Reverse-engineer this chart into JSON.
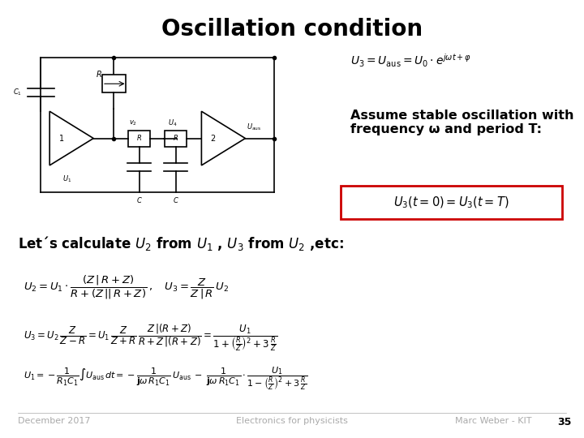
{
  "title": "Oscillation condition",
  "title_fontsize": 20,
  "title_fontweight": "bold",
  "bg_color": "#ffffff",
  "text_color": "#000000",
  "gray_color": "#888888",
  "red_box_color": "#cc0000",
  "assume_text": "Assume stable oscillation with\nfrequency ω and period T:",
  "assume_fontsize": 11.5,
  "footer_left": "December 2017",
  "footer_center": "Electronics for physicists",
  "footer_right": "Marc Weber - KIT",
  "footer_page": "35",
  "footer_fontsize": 8,
  "footer_color": "#aaaaaa"
}
